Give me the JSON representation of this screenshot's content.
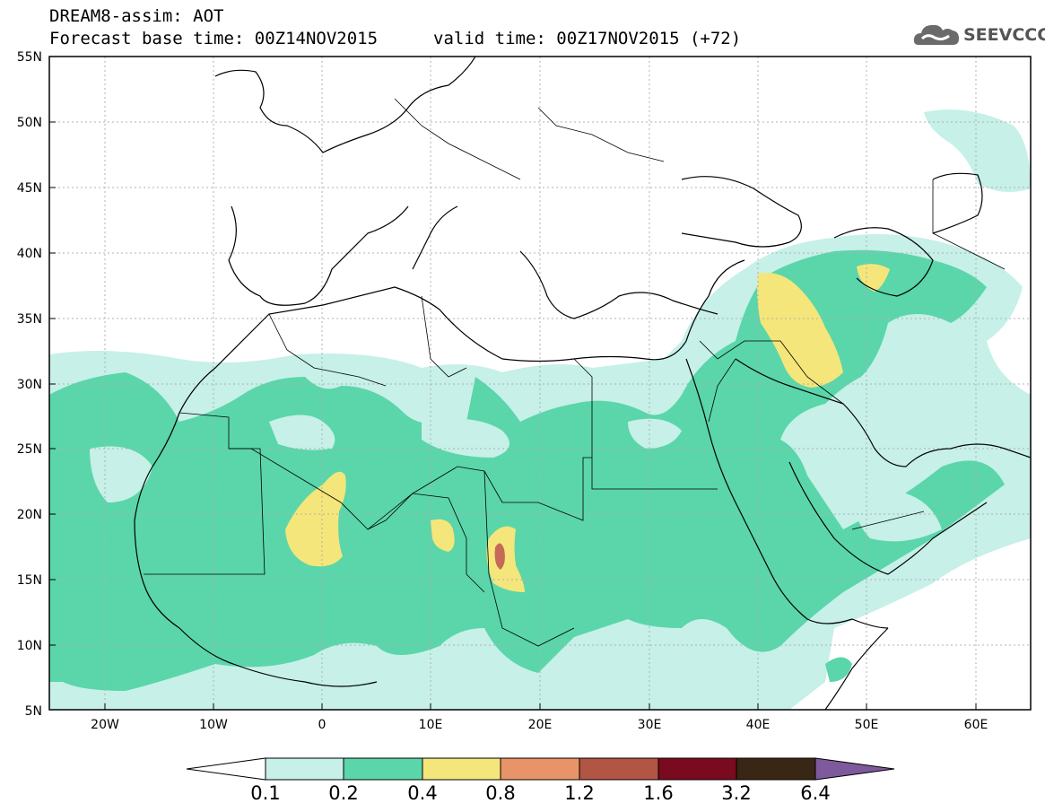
{
  "header": {
    "line1": "DREAM8-assim: AOT",
    "line2": "Forecast base time: 00Z14NOV2015",
    "line3": "valid time: 00Z17NOV2015 (+72)"
  },
  "logo": {
    "text": "SEEVCCC",
    "icon": "cloud-icon"
  },
  "axes": {
    "lat_labels": [
      "55N",
      "50N",
      "45N",
      "40N",
      "35N",
      "30N",
      "25N",
      "20N",
      "15N",
      "10N",
      "5N"
    ],
    "lon_labels": [
      "20W",
      "10W",
      "0",
      "10E",
      "20E",
      "30E",
      "40E",
      "50E",
      "60E"
    ]
  },
  "colorbar": {
    "labels": [
      "0.1",
      "0.2",
      "0.4",
      "0.8",
      "1.2",
      "1.6",
      "3.2",
      "6.4"
    ],
    "colors": [
      "#ffffff",
      "#c6f0e8",
      "#5ad6aa",
      "#f4e67a",
      "#e89468",
      "#b25544",
      "#7a0a1e",
      "#3a2614",
      "#7e5a9c"
    ]
  },
  "colors": {
    "level_0_1": "#c6f0e8",
    "level_0_2": "#5ad6aa",
    "level_0_4": "#f4e67a",
    "level_0_8": "#e89468",
    "level_1_2": "#b25544",
    "coast": "#000000",
    "grid": "#b0b0b0"
  }
}
